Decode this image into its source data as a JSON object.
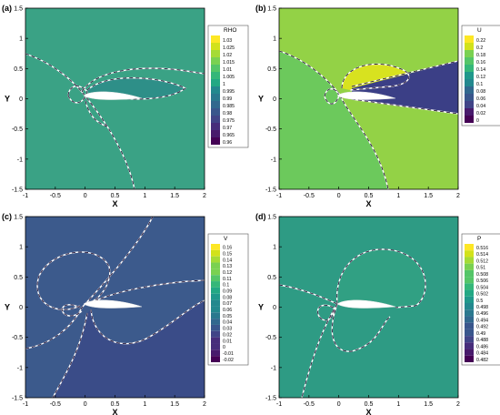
{
  "axis_labels": {
    "x": "X",
    "y": "Y"
  },
  "x_ticks": [
    "-1",
    "-0.5",
    "0",
    "0.5",
    "1",
    "1.5",
    "2"
  ],
  "y_ticks": [
    "-1.5",
    "-1",
    "-0.5",
    "0",
    "0.5",
    "1",
    "1.5"
  ],
  "chart_data": [
    {
      "type": "heatmap",
      "panel_label": "(a)",
      "legend_title": "RHO",
      "levels": [
        "1.03",
        "1.025",
        "1.02",
        "1.015",
        "1.01",
        "1.005",
        "1",
        "0.995",
        "0.99",
        "0.985",
        "0.98",
        "0.975",
        "0.97",
        "0.965",
        "0.96"
      ],
      "xlim": [
        -1,
        2
      ],
      "ylim": [
        -1.5,
        1.5
      ],
      "background_color": "#3aa285"
    },
    {
      "type": "heatmap",
      "panel_label": "(b)",
      "legend_title": "U",
      "levels": [
        "0.22",
        "0.2",
        "0.18",
        "0.16",
        "0.14",
        "0.12",
        "0.1",
        "0.08",
        "0.06",
        "0.04",
        "0.02",
        "0"
      ],
      "xlim": [
        -1,
        2
      ],
      "ylim": [
        -1.5,
        1.5
      ],
      "background_color": "#93d246"
    },
    {
      "type": "heatmap",
      "panel_label": "(c)",
      "legend_title": "V",
      "levels": [
        "0.16",
        "0.15",
        "0.14",
        "0.13",
        "0.12",
        "0.11",
        "0.1",
        "0.09",
        "0.08",
        "0.07",
        "0.06",
        "0.05",
        "0.04",
        "0.03",
        "0.02",
        "0.01",
        "0",
        "-0.01",
        "-0.02"
      ],
      "xlim": [
        -1,
        2
      ],
      "ylim": [
        -1.5,
        1.5
      ],
      "background_color": "#3c5a8c"
    },
    {
      "type": "heatmap",
      "panel_label": "(d)",
      "legend_title": "P",
      "levels": [
        "0.516",
        "0.514",
        "0.512",
        "0.51",
        "0.508",
        "0.506",
        "0.504",
        "0.502",
        "0.5",
        "0.498",
        "0.496",
        "0.494",
        "0.492",
        "0.49",
        "0.488",
        "0.486",
        "0.484",
        "0.482"
      ],
      "xlim": [
        -1,
        2
      ],
      "ylim": [
        -1.5,
        1.5
      ],
      "background_color": "#2e9b84"
    }
  ]
}
